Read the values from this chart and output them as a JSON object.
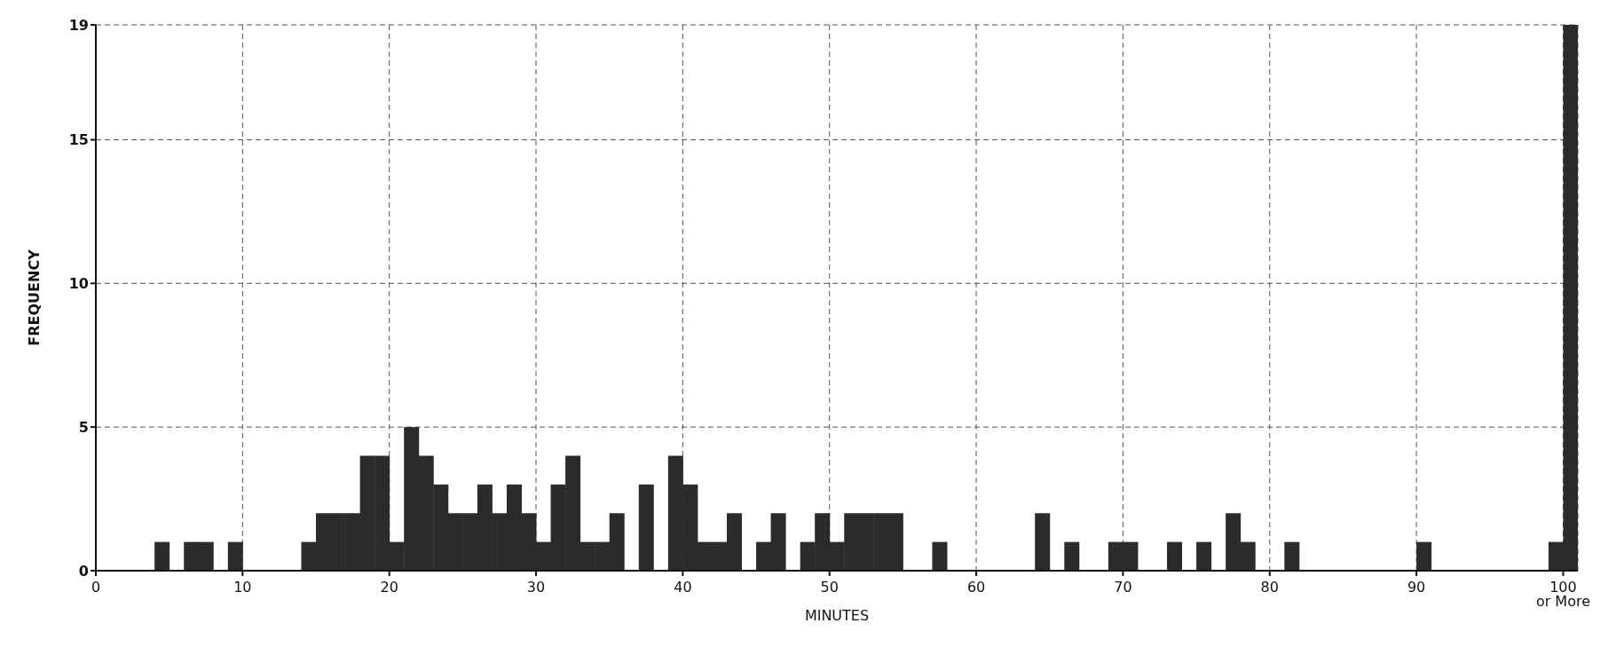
{
  "chart_data": {
    "type": "histogram",
    "xlabel": "MINUTES",
    "ylabel": "FREQUENCY",
    "bins": [
      0,
      1,
      2,
      3,
      4,
      5,
      6,
      7,
      8,
      9,
      10,
      11,
      12,
      13,
      14,
      15,
      16,
      17,
      18,
      19,
      20,
      21,
      22,
      23,
      24,
      25,
      26,
      27,
      28,
      29,
      30,
      31,
      32,
      33,
      34,
      35,
      36,
      37,
      38,
      39,
      40,
      41,
      42,
      43,
      44,
      45,
      46,
      47,
      48,
      49,
      50,
      51,
      52,
      53,
      54,
      55,
      56,
      57,
      58,
      59,
      60,
      61,
      62,
      63,
      64,
      65,
      66,
      67,
      68,
      69,
      70,
      71,
      72,
      73,
      74,
      75,
      76,
      77,
      78,
      79,
      80,
      81,
      82,
      83,
      84,
      85,
      86,
      87,
      88,
      89,
      90,
      91,
      92,
      93,
      94,
      95,
      96,
      97,
      98,
      99,
      100,
      101
    ],
    "values": [
      0,
      0,
      0,
      0,
      1,
      0,
      1,
      1,
      0,
      1,
      0,
      0,
      0,
      0,
      1,
      2,
      2,
      2,
      4,
      4,
      1,
      5,
      4,
      3,
      2,
      2,
      3,
      2,
      3,
      2,
      1,
      3,
      4,
      1,
      1,
      2,
      0,
      3,
      0,
      4,
      3,
      1,
      1,
      2,
      0,
      1,
      2,
      0,
      1,
      2,
      1,
      2,
      2,
      2,
      2,
      0,
      0,
      1,
      0,
      0,
      0,
      0,
      0,
      0,
      2,
      0,
      1,
      0,
      0,
      1,
      1,
      0,
      0,
      1,
      0,
      1,
      0,
      2,
      1,
      0,
      0,
      1,
      0,
      0,
      0,
      0,
      0,
      0,
      0,
      0,
      1,
      0,
      0,
      0,
      0,
      0,
      0,
      0,
      0,
      1,
      19
    ],
    "color": "#2b2b2b",
    "xlim": [
      0,
      101
    ],
    "xticks": [
      0,
      10,
      20,
      30,
      40,
      50,
      60,
      70,
      80,
      90,
      {
        "value": 100,
        "label": "100 or More"
      }
    ],
    "ylim": [
      0,
      19
    ],
    "yticks": [
      0,
      5,
      10,
      15,
      19
    ],
    "grid": true
  }
}
